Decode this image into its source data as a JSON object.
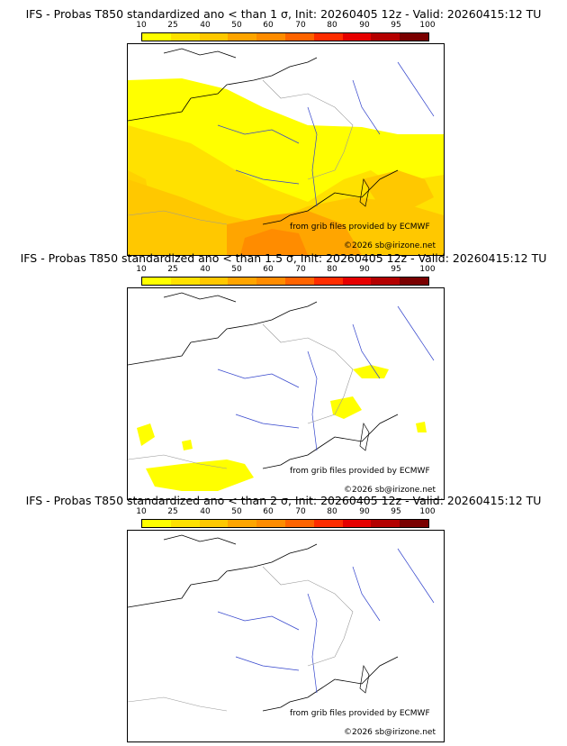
{
  "colorbar": {
    "ticks": [
      "10",
      "25",
      "40",
      "50",
      "60",
      "70",
      "80",
      "90",
      "95",
      "100"
    ],
    "colors": [
      "#ffff00",
      "#ffe100",
      "#ffc800",
      "#ffa500",
      "#ff8c00",
      "#ff6400",
      "#ff2d00",
      "#e60000",
      "#b40000",
      "#7a0000"
    ]
  },
  "panels": [
    {
      "title": "IFS - Probas T850  standardized ano < than 1 σ, Init: 20260405 12z - Valid: 20260415:12 TU",
      "credit": "from grib files provided by ECMWF",
      "copyright": "©2026 sb@irizone.net"
    },
    {
      "title": "IFS - Probas T850  standardized ano < than 1.5 σ, Init: 20260405 12z - Valid: 20260415:12 TU",
      "credit": "from grib files provided by ECMWF",
      "copyright": "©2026 sb@irizone.net"
    },
    {
      "title": "IFS - Probas T850  standardized ano < than 2 σ, Init: 20260405 12z - Valid: 20260415:12 TU",
      "credit": "from grib files provided by ECMWF",
      "copyright": "©2026 sb@irizone.net"
    }
  ]
}
